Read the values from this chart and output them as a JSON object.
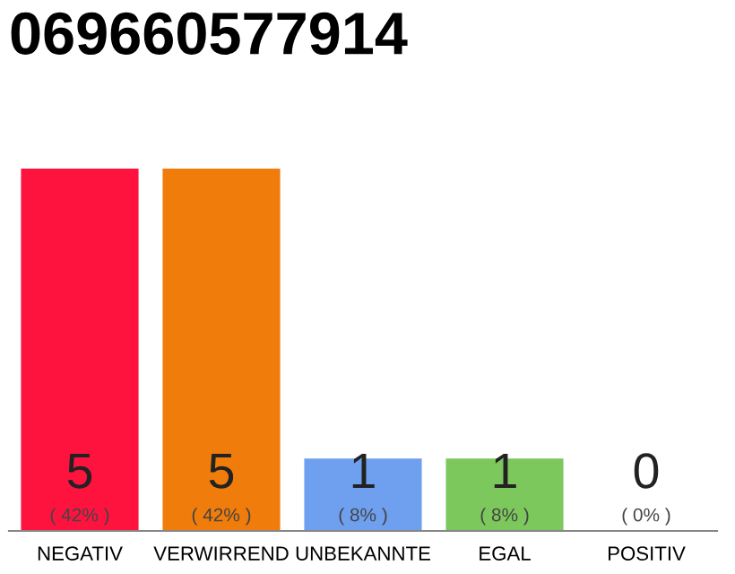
{
  "chart_data": {
    "type": "bar",
    "title": "069660577914",
    "categories": [
      "NEGATIV",
      "VERWIRREND",
      "UNBEKANNTE",
      "EGAL",
      "POSITIV"
    ],
    "values": [
      5,
      5,
      1,
      1,
      0
    ],
    "colors": [
      "#fe133f",
      "#f07c0b",
      "#6ea0ef",
      "#7cc85c",
      "#d0d0d0"
    ],
    "value_labels": [
      "5\n( 42% )",
      "5\n( 42% )",
      "1\n( 8% )",
      "1\n( 8% )",
      "0\n( 0% )"
    ],
    "grid": false,
    "legend": false
  }
}
